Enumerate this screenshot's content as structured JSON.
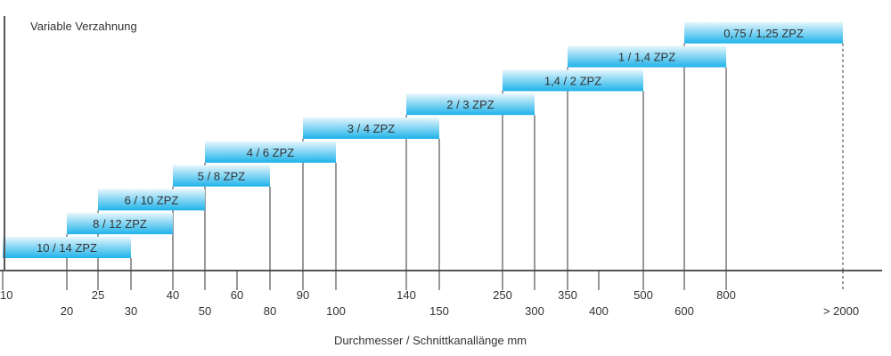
{
  "chart_data": {
    "type": "bar",
    "title": "Variable Verzahnung",
    "xlabel": "Durchmesser / Schnittkanallänge mm",
    "ylabel": "",
    "grid": false,
    "x_tick_labels": [
      "10",
      "20",
      "25",
      "30",
      "40",
      "50",
      "60",
      "80",
      "90",
      "100",
      "140",
      "150",
      "250",
      "300",
      "350",
      "400",
      "500",
      "600",
      "800",
      "> 2000"
    ],
    "bars": [
      {
        "label": "10 / 14 ZPZ",
        "from": "10",
        "to": "30"
      },
      {
        "label": "8 / 12 ZPZ",
        "from": "20",
        "to": "40"
      },
      {
        "label": "6 / 10 ZPZ",
        "from": "25",
        "to": "50"
      },
      {
        "label": "5 / 8 ZPZ",
        "from": "40",
        "to": "80"
      },
      {
        "label": "4 / 6 ZPZ",
        "from": "50",
        "to": "100"
      },
      {
        "label": "3 / 4 ZPZ",
        "from": "90",
        "to": "150"
      },
      {
        "label": "2 / 3 ZPZ",
        "from": "140",
        "to": "300"
      },
      {
        "label": "1,4 / 2 ZPZ",
        "from": "250",
        "to": "500"
      },
      {
        "label": "1 / 1,4 ZPZ",
        "from": "350",
        "to": "800"
      },
      {
        "label": "0,75 / 1,25 ZPZ",
        "from": "600",
        "to": "> 2000"
      }
    ],
    "colors": {
      "bar_light": "#e6f6fd",
      "bar_dark": "#1fb3ea",
      "axis": "#555555",
      "guide": "#333333"
    }
  }
}
